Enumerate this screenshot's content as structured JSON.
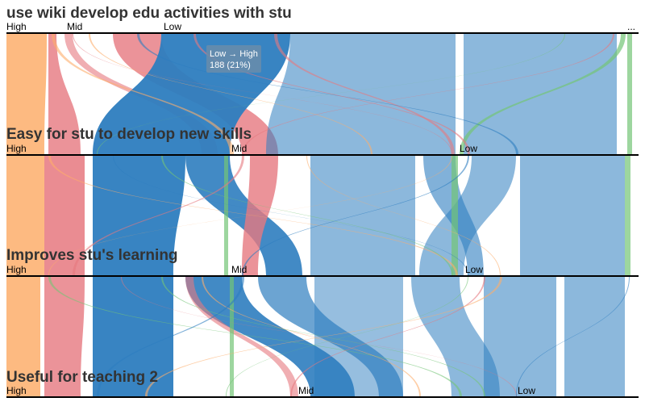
{
  "chart_data": {
    "type": "parallel-sets",
    "dimensions": [
      {
        "title": "use wiki develop edu activities with stu",
        "categories": [
          "High",
          "Mid",
          "Low",
          "..."
        ]
      },
      {
        "title": "Easy for stu to develop new skills",
        "categories": [
          "High",
          "Mid",
          "Low"
        ]
      },
      {
        "title": "Improves stu's learning",
        "categories": [
          "High",
          "Mid",
          "Low"
        ]
      },
      {
        "title": "Useful for teaching 2",
        "categories": [
          "High",
          "Mid",
          "Low"
        ]
      }
    ],
    "color_by_first_dimension": {
      "High": "#fdae6b",
      "Mid": "#e6787f",
      "Low": "#2d7dbf",
      "...": "#74c476"
    },
    "tooltip": {
      "label": "Low → High",
      "value": "188 (21%)"
    }
  }
}
